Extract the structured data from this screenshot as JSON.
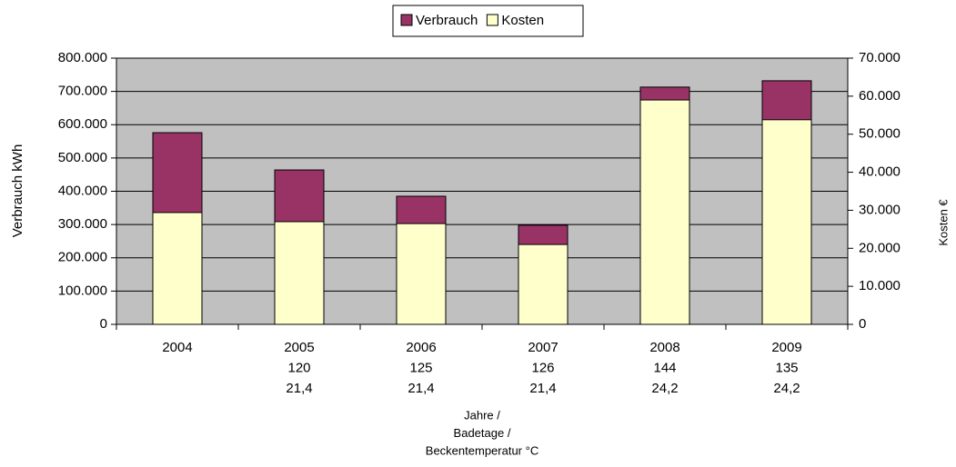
{
  "chart_data": {
    "type": "bar",
    "categories": [
      [
        "2004"
      ],
      [
        "2005",
        "120",
        "21,4"
      ],
      [
        "2006",
        "125",
        "21,4"
      ],
      [
        "2007",
        "126",
        "21,4"
      ],
      [
        "2008",
        "144",
        "24,2"
      ],
      [
        "2009",
        "135",
        "24,2"
      ]
    ],
    "series": [
      {
        "name": "Verbrauch",
        "color": "#993366",
        "values": [
          576000,
          464000,
          385000,
          298000,
          713000,
          732000
        ]
      },
      {
        "name": "Kosten",
        "color": "#ffffcc",
        "axis": "y2",
        "values": [
          29400,
          27000,
          26500,
          21000,
          59000,
          53800
        ]
      }
    ],
    "y_label": "Verbrauch kWh",
    "y2_label": "Kosten €",
    "x_label": [
      "Jahre /",
      "Badetage /",
      "Beckentemperatur °C"
    ],
    "ylim": [
      0,
      800000
    ],
    "yticks": [
      0,
      {
        "value": 100000,
        "label": "100.000"
      },
      {
        "value": 200000,
        "label": "200.000"
      },
      {
        "value": 300000,
        "label": "300.000"
      },
      {
        "value": 400000,
        "label": "400.000"
      },
      {
        "value": 500000,
        "label": "500.000"
      },
      {
        "value": 600000,
        "label": "600.000"
      },
      {
        "value": 700000,
        "label": "700.000"
      },
      {
        "value": 800000,
        "label": "800.000"
      }
    ],
    "y2lim": [
      0,
      70000
    ],
    "y2ticks": [
      0,
      {
        "value": 10000,
        "label": "10.000"
      },
      {
        "value": 20000,
        "label": "20.000"
      },
      {
        "value": 30000,
        "label": "30.000"
      },
      {
        "value": 40000,
        "label": "40.000"
      },
      {
        "value": 50000,
        "label": "50.000"
      },
      {
        "value": 60000,
        "label": "60.000"
      },
      {
        "value": 70000,
        "label": "70.000"
      }
    ],
    "grid": true,
    "legend": "top"
  }
}
